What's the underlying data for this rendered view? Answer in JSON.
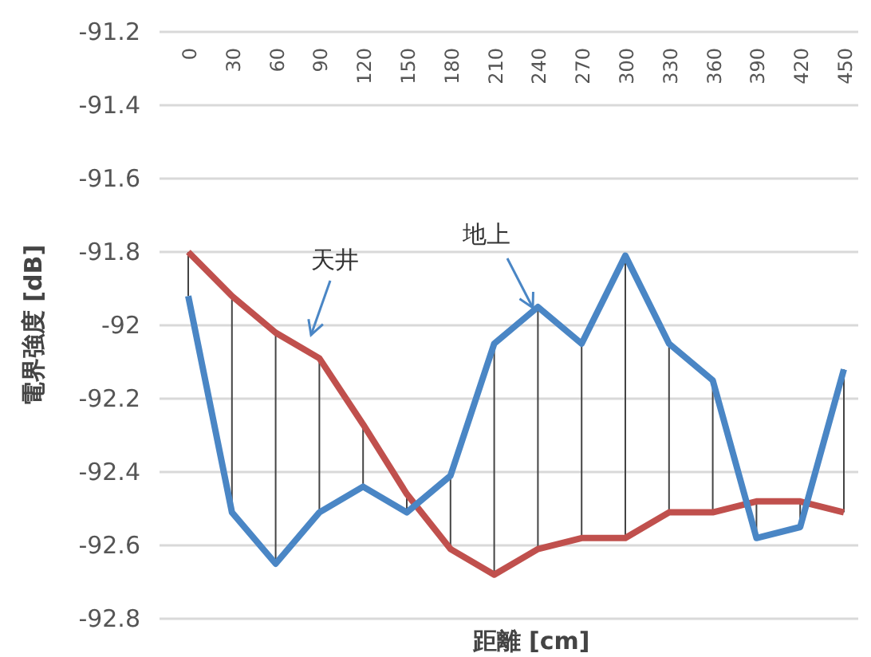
{
  "chart_data": {
    "type": "line",
    "xlabel": "距離 [cm]",
    "ylabel": "電界強度 [dB]",
    "categories": [
      "0",
      "30",
      "60",
      "90",
      "120",
      "150",
      "180",
      "210",
      "240",
      "270",
      "300",
      "330",
      "360",
      "390",
      "420",
      "450"
    ],
    "series": [
      {
        "name": "地上",
        "color": "#4a86c5",
        "values": [
          -91.92,
          -92.51,
          -92.65,
          -92.51,
          -92.44,
          -92.51,
          -92.41,
          -92.05,
          -91.95,
          -92.05,
          -91.81,
          -92.05,
          -92.15,
          -92.58,
          -92.55,
          -92.12
        ]
      },
      {
        "name": "天井",
        "color": "#c0504d",
        "values": [
          -91.8,
          -91.92,
          -92.02,
          -92.09,
          -92.27,
          -92.46,
          -92.61,
          -92.68,
          -92.61,
          -92.58,
          -92.58,
          -92.51,
          -92.51,
          -92.48,
          -92.48,
          -92.51
        ]
      }
    ],
    "ylim": [
      -92.8,
      -91.2
    ],
    "yticks": [
      -91.2,
      -91.4,
      -91.6,
      -91.8,
      -92,
      -92.2,
      -92.4,
      -92.6,
      -92.8
    ],
    "grid": "y",
    "marker": "none",
    "line_style": "solid"
  }
}
